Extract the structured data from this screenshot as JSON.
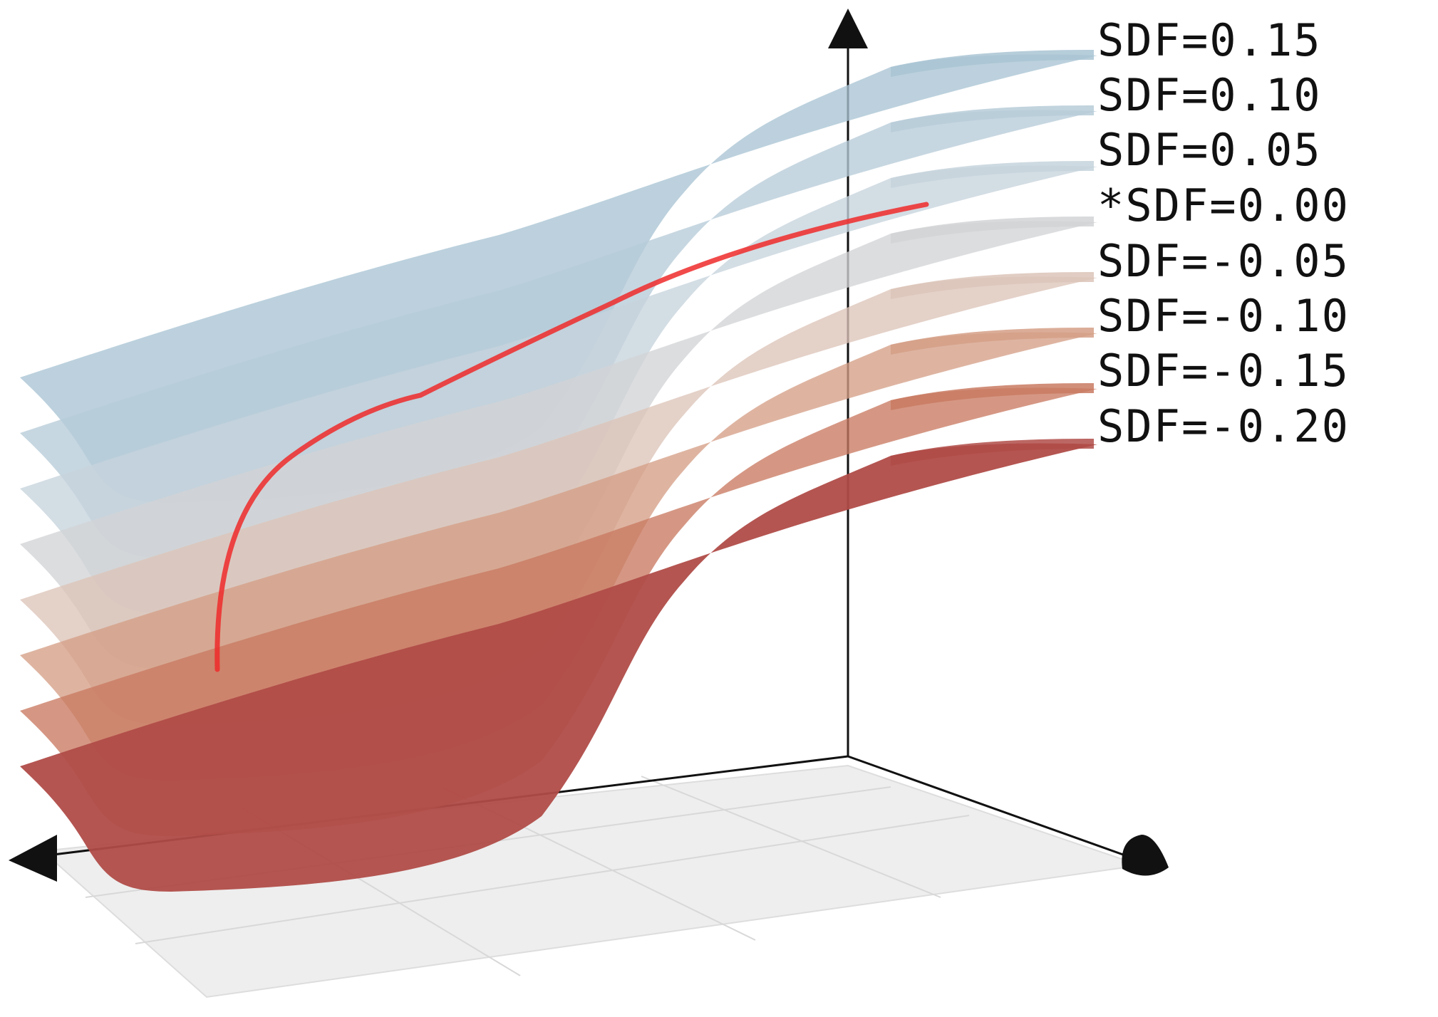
{
  "surfaces": [
    {
      "label": "SDF=0.15",
      "color": "#a9c4d4"
    },
    {
      "label": "SDF=0.10",
      "color": "#b7ccd8"
    },
    {
      "label": "SDF=0.05",
      "color": "#c6d3dc"
    },
    {
      "label": "*SDF=0.00",
      "color": "#d2d3d6"
    },
    {
      "label": "SDF=-0.05",
      "color": "#dcc4b8"
    },
    {
      "label": "SDF=-0.10",
      "color": "#d59f86"
    },
    {
      "label": "SDF=-0.15",
      "color": "#c97a62"
    },
    {
      "label": "SDF=-0.20",
      "color": "#b04c48"
    }
  ],
  "trajectory_color": "#ee2a2a",
  "floor_color": "#ececec",
  "axis_color": "#111111"
}
